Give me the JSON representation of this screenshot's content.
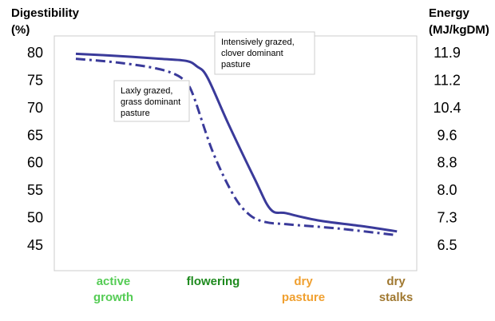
{
  "chart_data": {
    "type": "line",
    "y_left_title": [
      "Digestibility",
      "(%)"
    ],
    "y_right_title": [
      "Energy",
      "(MJ/kgDM)"
    ],
    "y_left_ticks": [
      "80",
      "75",
      "70",
      "65",
      "60",
      "55",
      "50",
      "45"
    ],
    "y_right_ticks": [
      "11.9",
      "11.2",
      "10.4",
      "9.6",
      "8.8",
      "8.0",
      "7.3",
      "6.5"
    ],
    "ylim": [
      42,
      82
    ],
    "xlim": [
      0,
      3.2
    ],
    "categories": [
      {
        "lines": [
          "active",
          "growth"
        ],
        "color": "#55cc55"
      },
      {
        "lines": [
          "flowering"
        ],
        "color": "#1e8a1e"
      },
      {
        "lines": [
          "dry",
          "pasture"
        ],
        "color": "#f0a030"
      },
      {
        "lines": [
          "dry",
          "stalks"
        ],
        "color": "#a07830"
      }
    ],
    "series": [
      {
        "style": "solid",
        "label_lines": [
          "Intensively grazed,",
          "clover dominant",
          "pasture"
        ],
        "x": [
          0.0,
          0.4,
          0.8,
          1.05,
          1.15,
          1.25,
          1.45,
          1.7,
          1.85,
          2.0,
          2.3,
          2.7,
          3.05
        ],
        "y": [
          79.8,
          79.4,
          78.9,
          78.5,
          77.5,
          75.5,
          67.0,
          57.0,
          51.5,
          50.8,
          49.5,
          48.5,
          47.5
        ]
      },
      {
        "style": "dash-dot",
        "label_lines": [
          "Laxly grazed,",
          "grass dominant",
          "pasture"
        ],
        "x": [
          0.0,
          0.4,
          0.75,
          0.95,
          1.05,
          1.12,
          1.3,
          1.5,
          1.65,
          1.8,
          2.0,
          2.5,
          3.05
        ],
        "y": [
          78.9,
          78.2,
          77.2,
          76.0,
          74.5,
          72.0,
          62.0,
          54.0,
          50.5,
          49.2,
          48.8,
          48.0,
          46.8
        ]
      }
    ],
    "line_color": "#3a3a9a"
  }
}
